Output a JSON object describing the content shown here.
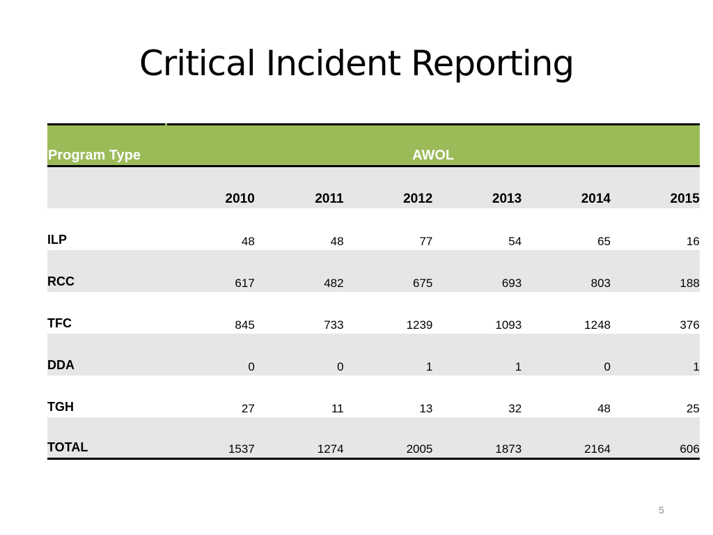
{
  "title": "Critical Incident Reporting",
  "table": {
    "header_program": "Program Type",
    "header_group": "AWOL",
    "years": [
      "2010",
      "2011",
      "2012",
      "2013",
      "2014",
      "2015"
    ],
    "rows": [
      {
        "label": "ILP",
        "values": [
          "48",
          "48",
          "77",
          "54",
          "65",
          "16"
        ]
      },
      {
        "label": "RCC",
        "values": [
          "617",
          "482",
          "675",
          "693",
          "803",
          "188"
        ]
      },
      {
        "label": "TFC",
        "values": [
          "845",
          "733",
          "1239",
          "1093",
          "1248",
          "376"
        ]
      },
      {
        "label": "DDA",
        "values": [
          "0",
          "0",
          "1",
          "1",
          "0",
          "1"
        ]
      },
      {
        "label": "TGH",
        "values": [
          "27",
          "11",
          "13",
          "32",
          "48",
          "25"
        ]
      },
      {
        "label": "TOTAL",
        "values": [
          "1537",
          "1274",
          "2005",
          "1873",
          "2164",
          "606"
        ]
      }
    ]
  },
  "colors": {
    "header_green": "#9bbb59",
    "row_shade": "#e6e6e6"
  },
  "page_number": "5"
}
